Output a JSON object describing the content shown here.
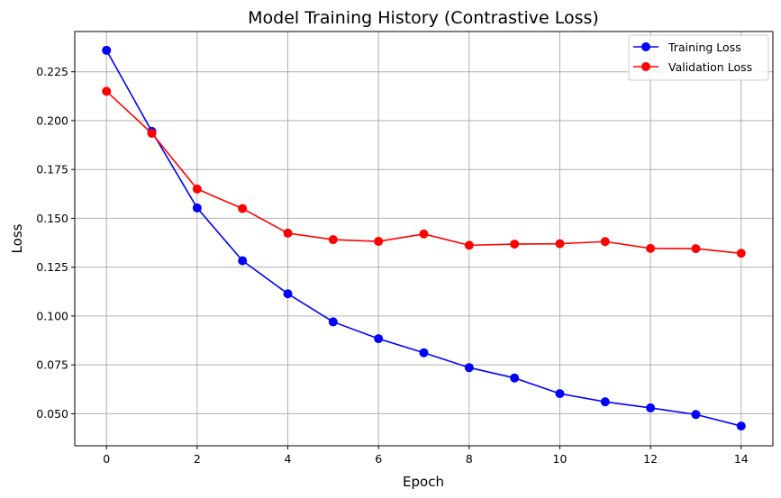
{
  "chart_data": {
    "type": "line",
    "title": "Model Training History (Contrastive Loss)",
    "xlabel": "Epoch",
    "ylabel": "Loss",
    "x": [
      0,
      1,
      2,
      3,
      4,
      5,
      6,
      7,
      8,
      9,
      10,
      11,
      12,
      13,
      14
    ],
    "xlim": [
      -0.7,
      14.7
    ],
    "ylim": [
      0.0336,
      0.2456
    ],
    "xticks": [
      0,
      2,
      4,
      6,
      8,
      10,
      12,
      14
    ],
    "yticks": [
      0.05,
      0.075,
      0.1,
      0.125,
      0.15,
      0.175,
      0.2,
      0.225
    ],
    "xtick_labels": [
      "0",
      "2",
      "4",
      "6",
      "8",
      "10",
      "12",
      "14"
    ],
    "ytick_labels": [
      "0.050",
      "0.075",
      "0.100",
      "0.125",
      "0.150",
      "0.175",
      "0.200",
      "0.225"
    ],
    "grid": true,
    "legend_position": "top-right",
    "series": [
      {
        "name": "Training Loss",
        "color": "#0000ff",
        "marker": "circle",
        "values": [
          0.236,
          0.1945,
          0.1553,
          0.1283,
          0.1114,
          0.097,
          0.0884,
          0.0812,
          0.0736,
          0.0683,
          0.0603,
          0.0561,
          0.053,
          0.0496,
          0.0437
        ]
      },
      {
        "name": "Validation Loss",
        "color": "#ff0000",
        "marker": "circle",
        "values": [
          0.215,
          0.1935,
          0.165,
          0.155,
          0.1424,
          0.1391,
          0.1382,
          0.142,
          0.1362,
          0.1368,
          0.137,
          0.1381,
          0.1346,
          0.1345,
          0.1321
        ]
      }
    ]
  }
}
